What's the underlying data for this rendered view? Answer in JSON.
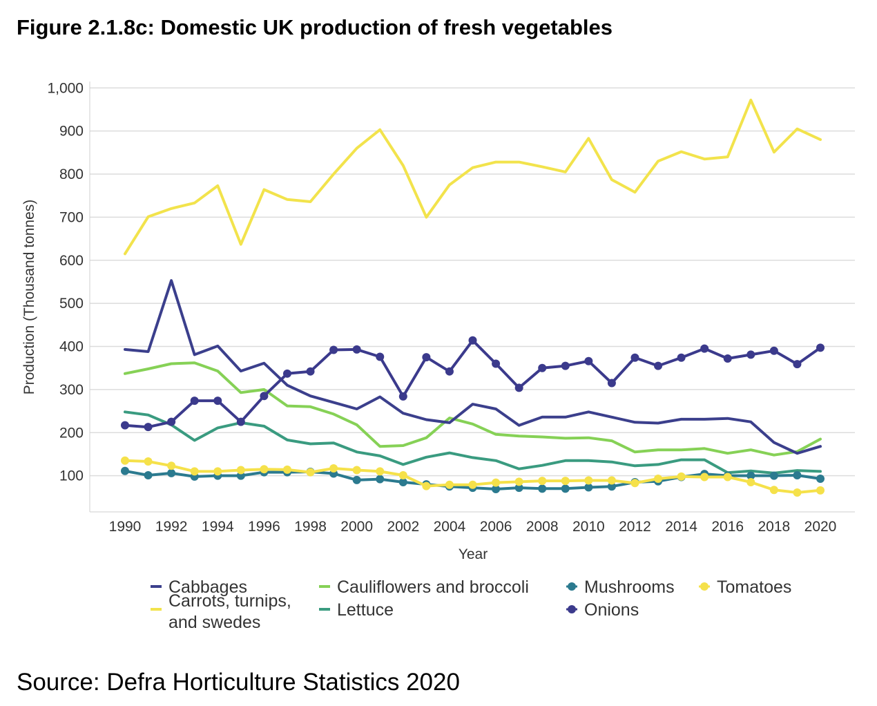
{
  "figure_title": "Figure 2.1.8c: Domestic UK production of fresh vegetables",
  "source": "Source: Defra Horticulture Statistics 2020",
  "chart_data": {
    "type": "line",
    "xlabel": "Year",
    "ylabel": "Production (Thousand tonnes)",
    "ylim": [
      0,
      1000
    ],
    "y_ticks": [
      "100",
      "200",
      "300",
      "400",
      "500",
      "600",
      "700",
      "800",
      "900",
      "1,000"
    ],
    "x_ticks": [
      "1990",
      "1992",
      "1994",
      "1996",
      "1998",
      "2000",
      "2002",
      "2004",
      "2006",
      "2008",
      "2010",
      "2012",
      "2014",
      "2016",
      "2018",
      "2020"
    ],
    "grid": true,
    "legend_position": "bottom",
    "x": [
      1990,
      1991,
      1992,
      1993,
      1994,
      1995,
      1996,
      1997,
      1998,
      1999,
      2000,
      2001,
      2002,
      2003,
      2004,
      2005,
      2006,
      2007,
      2008,
      2009,
      2010,
      2011,
      2012,
      2013,
      2014,
      2015,
      2016,
      2017,
      2018,
      2019,
      2020
    ],
    "series": [
      {
        "name": "Cabbages",
        "color": "#3b3f8c",
        "marker": false,
        "values": [
          393,
          388,
          553,
          381,
          401,
          343,
          361,
          310,
          285,
          270,
          255,
          283,
          245,
          230,
          223,
          266,
          255,
          217,
          236,
          236,
          248,
          236,
          224,
          222,
          231,
          231,
          233,
          225,
          177,
          152,
          168
        ]
      },
      {
        "name": "Carrots, turnips, and swedes",
        "color": "#f2e34c",
        "marker": false,
        "values": [
          615,
          701,
          720,
          733,
          773,
          637,
          764,
          741,
          736,
          800,
          860,
          903,
          820,
          700,
          775,
          815,
          828,
          828,
          817,
          805,
          883,
          787,
          758,
          830,
          852,
          835,
          840,
          972,
          851,
          905,
          880
        ]
      },
      {
        "name": "Cauliflowers and broccoli",
        "color": "#86d156",
        "marker": false,
        "values": [
          337,
          348,
          360,
          362,
          343,
          293,
          300,
          262,
          260,
          243,
          218,
          168,
          170,
          188,
          234,
          220,
          196,
          192,
          190,
          187,
          188,
          181,
          155,
          160,
          160,
          163,
          152,
          160,
          148,
          156,
          185
        ]
      },
      {
        "name": "Lettuce",
        "color": "#3a9b80",
        "marker": false,
        "values": [
          248,
          241,
          218,
          182,
          211,
          223,
          215,
          183,
          174,
          176,
          155,
          146,
          126,
          143,
          153,
          142,
          135,
          116,
          124,
          135,
          135,
          132,
          123,
          126,
          137,
          137,
          107,
          111,
          106,
          112,
          110
        ]
      },
      {
        "name": "Mushrooms",
        "color": "#2b7a8f",
        "marker": true,
        "values": [
          111,
          101,
          106,
          98,
          100,
          100,
          108,
          108,
          109,
          105,
          90,
          92,
          85,
          80,
          75,
          72,
          69,
          72,
          70,
          70,
          73,
          75,
          85,
          87,
          97,
          104,
          100,
          100,
          100,
          101,
          93
        ]
      },
      {
        "name": "Onions",
        "color": "#3b3a8c",
        "marker": true,
        "values": [
          217,
          213,
          225,
          274,
          274,
          225,
          285,
          337,
          342,
          392,
          393,
          376,
          284,
          375,
          342,
          414,
          360,
          304,
          350,
          355,
          366,
          315,
          374,
          355,
          374,
          395,
          372,
          381,
          390,
          359,
          397
        ]
      },
      {
        "name": "Tomatoes",
        "color": "#f5e14a",
        "marker": true,
        "values": [
          135,
          133,
          123,
          110,
          110,
          113,
          115,
          114,
          108,
          117,
          113,
          110,
          101,
          76,
          79,
          79,
          84,
          86,
          88,
          88,
          89,
          89,
          83,
          93,
          98,
          97,
          97,
          85,
          67,
          61,
          66
        ]
      }
    ]
  }
}
